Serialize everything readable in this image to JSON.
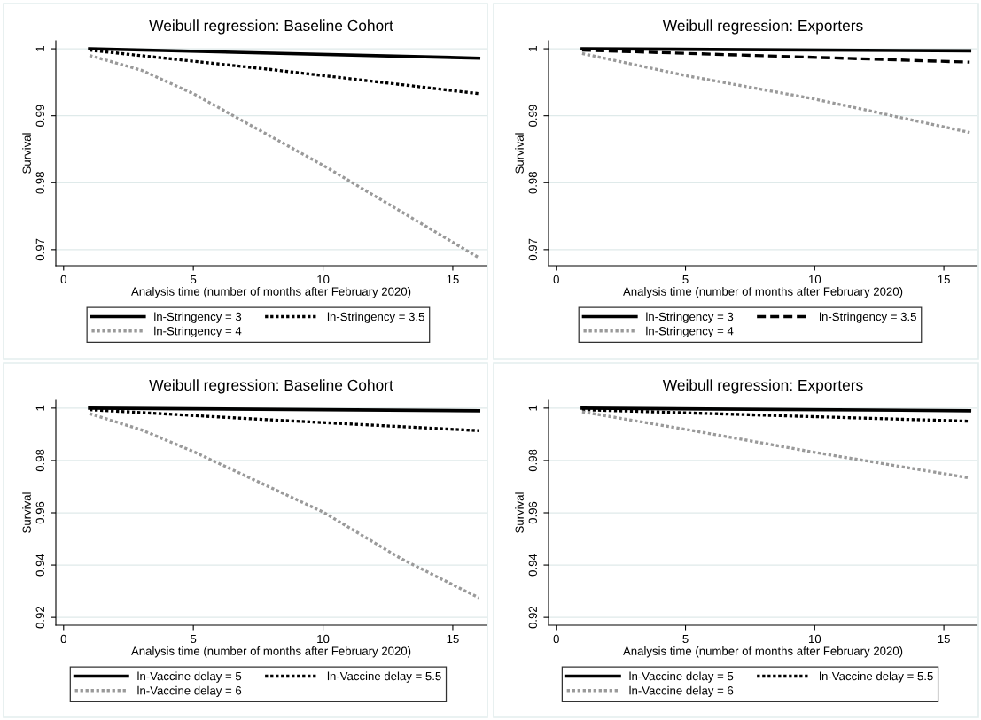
{
  "chart_data": [
    {
      "type": "line",
      "title": "Weibull regression: Baseline Cohort",
      "xlabel": "Analysis time (number of months after February 2020)",
      "ylabel": "Survival",
      "xlim": [
        -0.3,
        16.3
      ],
      "xticks": [
        0,
        5,
        10,
        15
      ],
      "ylim": [
        0.9676,
        1.0012
      ],
      "yticks": [
        {
          "value": 0.97,
          "label": "0.97"
        },
        {
          "value": 0.98,
          "label": "0.98"
        },
        {
          "value": 0.99,
          "label": "0.99"
        },
        1
      ],
      "grid": "y",
      "legend": "bottom",
      "series": [
        {
          "name": "ln-Stringency = 3",
          "color": "#000000",
          "line_style": "solid",
          "x": [
            1,
            16
          ],
          "values": [
            1.0,
            0.9986
          ]
        },
        {
          "name": "ln-Stringency = 3.5",
          "color": "#000000",
          "line_style": "dotted",
          "x": [
            1,
            8,
            16
          ],
          "values": [
            0.9998,
            0.9969,
            0.9933
          ]
        },
        {
          "name": "ln-Stringency = 4",
          "color": "#9a9a9a",
          "line_style": "dotted",
          "x": [
            1,
            3,
            5,
            10,
            13,
            16
          ],
          "values": [
            0.999,
            0.9968,
            0.9933,
            0.9826,
            0.9757,
            0.9688
          ]
        }
      ]
    },
    {
      "type": "line",
      "title": "Weibull regression: Exporters",
      "xlabel": "Analysis time (number of months after February 2020)",
      "ylabel": "Survival",
      "xlim": [
        -0.3,
        16.3
      ],
      "xticks": [
        0,
        5,
        10,
        15
      ],
      "ylim": [
        0.9676,
        1.0012
      ],
      "yticks": [
        {
          "value": 0.97,
          "label": "0.97"
        },
        {
          "value": 0.98,
          "label": "0.98"
        },
        {
          "value": 0.99,
          "label": "0.99"
        },
        1
      ],
      "grid": "y",
      "legend": "bottom",
      "series": [
        {
          "name": "ln-Stringency = 3",
          "color": "#000000",
          "line_style": "solid",
          "x": [
            1,
            16
          ],
          "values": [
            1.0,
            0.9997
          ]
        },
        {
          "name": "ln-Stringency = 3.5",
          "color": "#000000",
          "line_style": "dashed",
          "x": [
            1,
            16
          ],
          "values": [
            0.9998,
            0.998
          ]
        },
        {
          "name": "ln-Stringency = 4",
          "color": "#9a9a9a",
          "line_style": "dotted",
          "x": [
            1,
            5,
            10,
            16
          ],
          "values": [
            0.9993,
            0.996,
            0.9925,
            0.9875
          ]
        }
      ]
    },
    {
      "type": "line",
      "title": "Weibull regression: Baseline Cohort",
      "xlabel": "Analysis time (number of months after February 2020)",
      "ylabel": "Survival",
      "xlim": [
        -0.3,
        16.3
      ],
      "xticks": [
        0,
        5,
        10,
        15
      ],
      "ylim": [
        0.917,
        1.003
      ],
      "yticks": [
        {
          "value": 0.92,
          "label": "0.92"
        },
        {
          "value": 0.94,
          "label": "0.94"
        },
        {
          "value": 0.96,
          "label": "0.96"
        },
        {
          "value": 0.98,
          "label": "0.98"
        },
        1
      ],
      "grid": "y",
      "legend": "bottom",
      "series": [
        {
          "name": "ln-Vaccine delay = 5",
          "color": "#000000",
          "line_style": "solid",
          "x": [
            1,
            16
          ],
          "values": [
            1.0,
            0.999
          ]
        },
        {
          "name": "ln-Vaccine delay = 5.5",
          "color": "#000000",
          "line_style": "dotted",
          "x": [
            1,
            8,
            16
          ],
          "values": [
            0.9994,
            0.9955,
            0.9914
          ]
        },
        {
          "name": "ln-Vaccine delay = 6",
          "color": "#9a9a9a",
          "line_style": "dotted",
          "x": [
            1,
            3,
            5,
            10,
            13,
            16
          ],
          "values": [
            0.9979,
            0.9917,
            0.9834,
            0.9603,
            0.9425,
            0.9275
          ]
        }
      ]
    },
    {
      "type": "line",
      "title": "Weibull regression: Exporters",
      "xlabel": "Analysis time (number of months after February 2020)",
      "ylabel": "Survival",
      "xlim": [
        -0.3,
        16.3
      ],
      "xticks": [
        0,
        5,
        10,
        15
      ],
      "ylim": [
        0.917,
        1.003
      ],
      "yticks": [
        {
          "value": 0.92,
          "label": "0.92"
        },
        {
          "value": 0.94,
          "label": "0.94"
        },
        {
          "value": 0.96,
          "label": "0.96"
        },
        {
          "value": 0.98,
          "label": "0.98"
        },
        1
      ],
      "grid": "y",
      "legend": "bottom",
      "series": [
        {
          "name": "ln-Vaccine delay = 5",
          "color": "#000000",
          "line_style": "solid",
          "x": [
            1,
            16
          ],
          "values": [
            1.0,
            0.999
          ]
        },
        {
          "name": "ln-Vaccine delay = 5.5",
          "color": "#000000",
          "line_style": "dotted",
          "x": [
            1,
            8,
            16
          ],
          "values": [
            0.9994,
            0.9973,
            0.995
          ]
        },
        {
          "name": "ln-Vaccine delay = 6",
          "color": "#9a9a9a",
          "line_style": "dotted",
          "x": [
            1,
            5,
            10,
            16
          ],
          "values": [
            0.9986,
            0.9919,
            0.9831,
            0.9733
          ]
        }
      ]
    }
  ]
}
